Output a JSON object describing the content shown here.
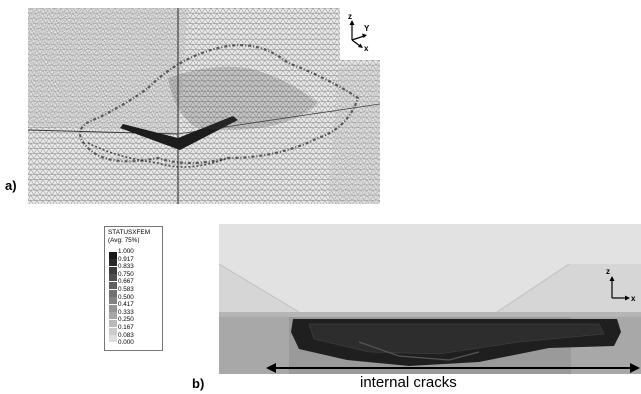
{
  "panels": {
    "a": {
      "letter": "a)"
    },
    "b": {
      "letter": "b)"
    }
  },
  "triad_top": {
    "z": "z",
    "y": "Y",
    "x": "x"
  },
  "triad_bottom": {
    "z": "z",
    "x": "x"
  },
  "legend": {
    "title_line1": "STATUSXFEM",
    "title_line2": "(Avg: 75%)",
    "values": [
      "1.000",
      "0.917",
      "0.833",
      "0.750",
      "0.667",
      "0.583",
      "0.500",
      "0.417",
      "0.333",
      "0.250",
      "0.167",
      "0.083",
      "0.000"
    ],
    "colors": [
      "#1a1a1a",
      "#2b2b2b",
      "#3c3c3c",
      "#4e4e4e",
      "#606060",
      "#717171",
      "#838383",
      "#959595",
      "#a7a7a7",
      "#b9b9b9",
      "#cbcbcb",
      "#dddddd",
      "#eeeeee"
    ]
  },
  "annotation": {
    "label": "internal cracks"
  }
}
